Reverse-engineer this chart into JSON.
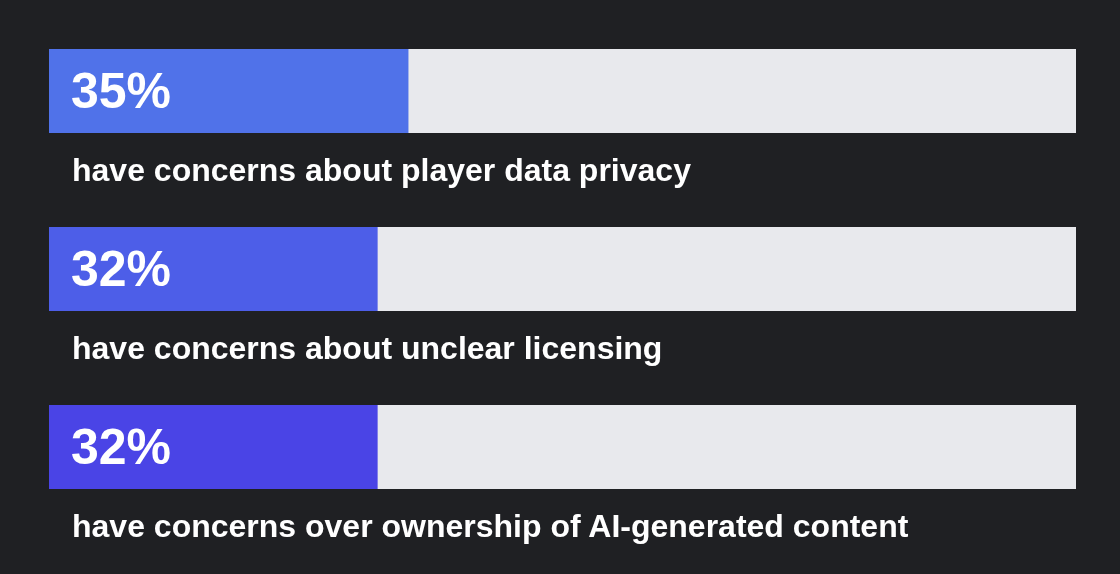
{
  "chart_data": {
    "type": "bar",
    "orientation": "horizontal",
    "categories": [
      "have concerns about player data privacy",
      "have concerns about unclear licensing",
      "have concerns over ownership of AI-generated content"
    ],
    "values": [
      35,
      32,
      32
    ],
    "value_labels": [
      "35%",
      "32%",
      "32%"
    ],
    "colors": [
      "#5072e9",
      "#4d5ee8",
      "#4a44e6"
    ],
    "xlim": [
      0,
      100
    ],
    "tick_labels": false
  }
}
